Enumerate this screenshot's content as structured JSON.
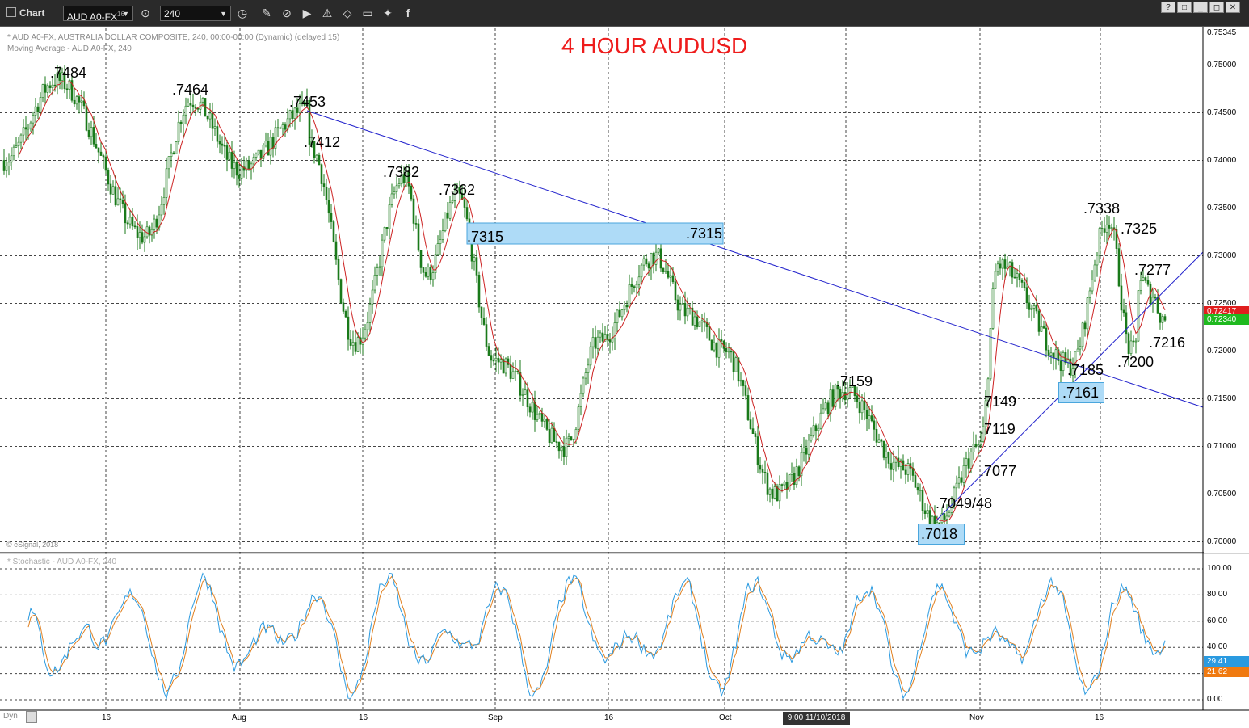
{
  "toolbar": {
    "title": "Chart",
    "symbol": "AUD A0-FX",
    "symbol_sup": "16",
    "interval": "240",
    "icons": [
      "clock-icon",
      "interval-clock-icon",
      "pencil-icon",
      "link-icon",
      "play-circle-icon",
      "alert-icon",
      "tag-icon",
      "comment-icon",
      "twitter-icon",
      "facebook-icon"
    ],
    "window_buttons": [
      "?",
      "□",
      "_",
      "◻",
      "✕"
    ]
  },
  "header": {
    "line1": "* AUD A0-FX, AUSTRALIA DOLLAR COMPOSITE, 240, 00:00-00:00 (Dynamic) (delayed 15)",
    "line2": "Moving Average - AUD A0-FX, 240",
    "annotation_title": "4 HOUR AUDUSD",
    "copyright": "© eSignal, 2018",
    "stoch_label": "* Stochastic - AUD A0-FX, 240"
  },
  "colors": {
    "candle": "#1a7a1a",
    "moving_average": "#cc2222",
    "trendline": "#2222cc",
    "highlight_fill": "#aedbf7",
    "title": "#ee1c1c",
    "stoch_k": "#2a9ae0",
    "stoch_d": "#e08020"
  },
  "price_labels": [
    ".7484",
    ".7464",
    ".7453",
    ".7412",
    ".7382",
    ".7362",
    ".7315",
    ".7159",
    ".7149",
    ".7119",
    ".7077",
    ".7049/48",
    ".7338",
    ".7325",
    ".7277",
    ".7216",
    ".7200",
    ".7185"
  ],
  "boxed_labels": [
    ".7315",
    ".7018",
    ".7161"
  ],
  "y_axis": {
    "top_value": "0.75345",
    "ticks": [
      "0.75000",
      "0.74500",
      "0.74000",
      "0.73500",
      "0.73000",
      "0.72500",
      "0.72000",
      "0.71500",
      "0.71000",
      "0.70500",
      "0.70000"
    ],
    "last_price_red": "0.72417",
    "last_price_green": "0.72340"
  },
  "stoch_axis": {
    "ticks": [
      "100.00",
      "80.00",
      "60.00",
      "40.00",
      "20.00",
      "0.00"
    ],
    "k_value": "29.41",
    "d_value": "21.62"
  },
  "x_axis": {
    "labels": [
      "16",
      "Aug",
      "16",
      "Sep",
      "16",
      "Oct",
      "Nov",
      "16"
    ],
    "date_tip": "9:00 11/10/2018",
    "dyn_label": "Dyn"
  },
  "chart_data": {
    "type": "line",
    "series": [
      {
        "name": "AUD A0-FX",
        "x": [
          "Jul 10",
          "Jul 16",
          "Jul 20",
          "Jul 25",
          "Aug 1",
          "Aug 9",
          "Aug 10",
          "Aug 15",
          "Aug 20",
          "Aug 24",
          "Aug 27",
          "Sep 4",
          "Sep 11",
          "Sep 16",
          "Sep 21",
          "Sep 26",
          "Oct 1",
          "Oct 10",
          "Oct 16",
          "Oct 23",
          "Oct 26",
          "Nov 1",
          "Nov 5",
          "Nov 9",
          "Nov 13",
          "Nov 16",
          "Nov 19",
          "Nov 20",
          "Nov 22",
          "Nov 23"
        ],
        "values": [
          0.74,
          0.7484,
          0.732,
          0.7464,
          0.739,
          0.7453,
          0.7412,
          0.721,
          0.7382,
          0.728,
          0.7362,
          0.719,
          0.71,
          0.721,
          0.73,
          0.724,
          0.72,
          0.705,
          0.7159,
          0.7077,
          0.7018,
          0.71,
          0.729,
          0.7185,
          0.72,
          0.7338,
          0.7277,
          0.72,
          0.726,
          0.7234
        ]
      }
    ],
    "xlabel": "",
    "ylabel": "",
    "ylim": [
      0.7,
      0.75345
    ],
    "grid": true
  }
}
